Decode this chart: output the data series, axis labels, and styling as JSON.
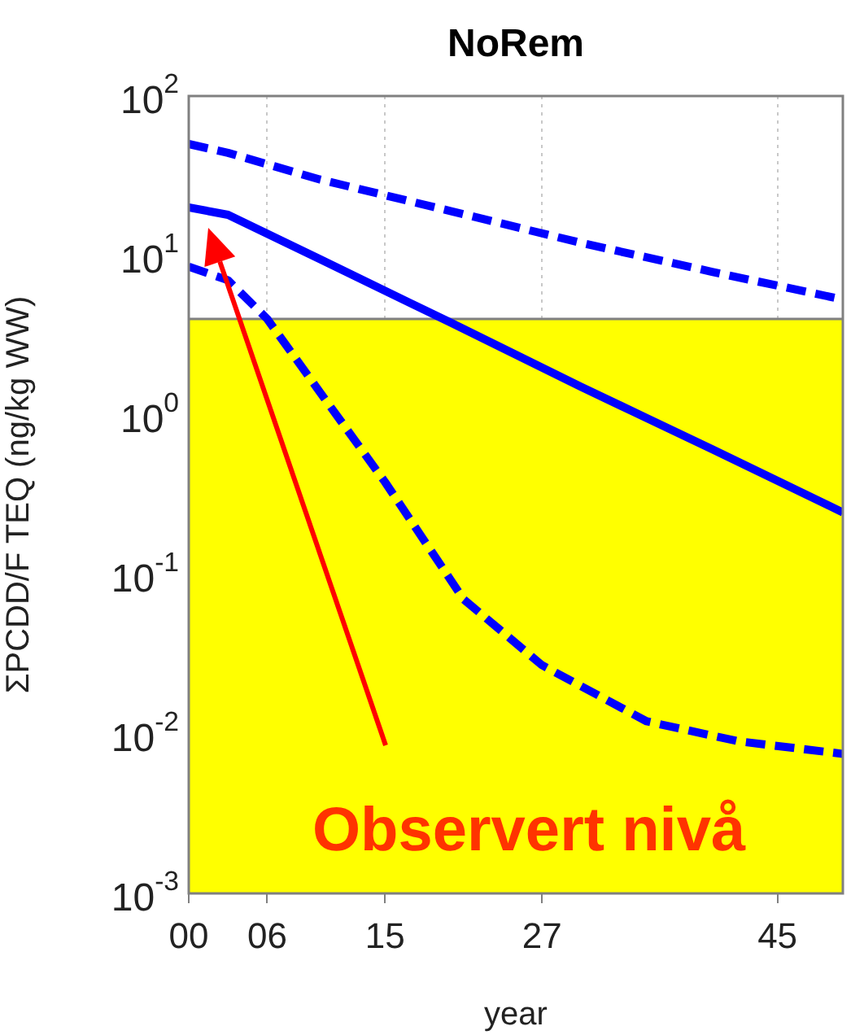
{
  "chart_data": {
    "type": "line",
    "title": "NoRem",
    "xlabel": "year",
    "ylabel": "ΣPCDD/F TEQ (ng/kg WW)",
    "xlim": [
      2000,
      2050
    ],
    "xticks": [
      {
        "value": 2000,
        "label": "00"
      },
      {
        "value": 2006,
        "label": "06"
      },
      {
        "value": 2015,
        "label": "15"
      },
      {
        "value": 2027,
        "label": "27"
      },
      {
        "value": 2045,
        "label": "45"
      }
    ],
    "ylim": [
      0.001,
      100
    ],
    "yticks": [
      {
        "value": 0.001,
        "label": "10$^{-3}$"
      },
      {
        "value": 0.01,
        "label": "10$^{-2}$"
      },
      {
        "value": 0.1,
        "label": "10$^{-1}$"
      },
      {
        "value": 1,
        "label": "10$^{0}$"
      },
      {
        "value": 10,
        "label": "10$^{1}$"
      },
      {
        "value": 100,
        "label": "10$^{2}$"
      }
    ],
    "log": "y",
    "grid": "x",
    "legend": false,
    "marker": "none",
    "series": [
      {
        "color": "#0000ff",
        "line_style": "dashed",
        "x": [
          2000,
          2003,
          2010,
          2020,
          2030,
          2040,
          2050
        ],
        "values": [
          50,
          44,
          30,
          19,
          12,
          7.9,
          5.3
        ]
      },
      {
        "color": "#0000ff",
        "line_style": "solid",
        "x": [
          2000,
          2003,
          2010,
          2020,
          2030,
          2040,
          2050
        ],
        "values": [
          20,
          18,
          9.5,
          3.8,
          1.5,
          0.61,
          0.245
        ]
      },
      {
        "color": "#0000ff",
        "line_style": "dashed",
        "x": [
          2000,
          2003,
          2006,
          2010,
          2015,
          2021,
          2027,
          2035,
          2042,
          2050
        ],
        "values": [
          8.5,
          7,
          4,
          1.4,
          0.38,
          0.07,
          0.027,
          0.012,
          0.009,
          0.0075
        ]
      }
    ],
    "bands": [
      {
        "axis": "y",
        "from": 0.001,
        "to": 4,
        "color": "#ffff00"
      }
    ],
    "ref_lines": [
      {
        "axis": "y",
        "value": 4,
        "color": "#808080"
      }
    ],
    "annotations": [
      "Observert nivå"
    ]
  }
}
